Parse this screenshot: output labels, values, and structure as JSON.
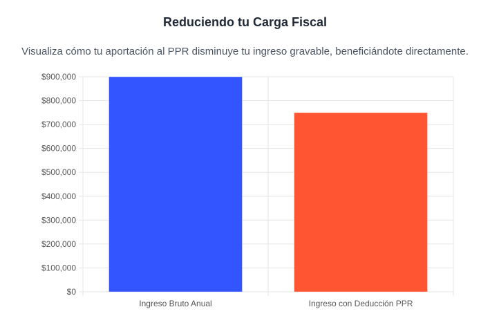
{
  "header": {
    "title": "Reduciendo tu Carga Fiscal",
    "subtitle": "Visualiza cómo tu aportación al PPR disminuye tu ingreso gravable, beneficiándote directamente."
  },
  "chart_data": {
    "type": "bar",
    "categories": [
      "Ingreso Bruto Anual",
      "Ingreso con Deducción PPR"
    ],
    "values": [
      900000,
      750000
    ],
    "colors": [
      "#3355ff",
      "#ff5533"
    ],
    "title": "Reduciendo tu Carga Fiscal",
    "subtitle": "Visualiza cómo tu aportación al PPR disminuye tu ingreso gravable, beneficiándote directamente.",
    "xlabel": "",
    "ylabel": "",
    "ylim": [
      0,
      900000
    ],
    "yticks": [
      "$0",
      "$100,000",
      "$200,000",
      "$300,000",
      "$400,000",
      "$500,000",
      "$600,000",
      "$700,000",
      "$800,000",
      "$900,000"
    ],
    "grid": true,
    "legend": "none"
  }
}
